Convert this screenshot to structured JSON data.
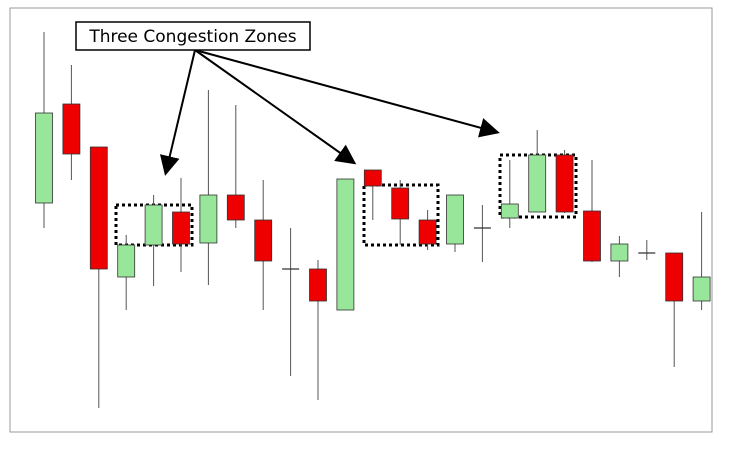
{
  "chart_data": {
    "type": "candlestick",
    "annotation": "Three Congestion Zones",
    "ylim": [
      0,
      420
    ],
    "up_color": "#98e69a",
    "down_color": "#ee0000",
    "open": [
      227,
      326,
      283,
      153,
      185,
      218,
      187,
      235,
      210,
      161,
      161,
      120,
      260,
      242,
      210,
      186,
      202,
      212,
      218,
      275,
      219,
      169,
      177,
      177,
      129
    ],
    "close": [
      317,
      276,
      161,
      185,
      225,
      186,
      235,
      210,
      169,
      161,
      129,
      251,
      244,
      211,
      186,
      235,
      202,
      226,
      275,
      218,
      169,
      186,
      177,
      129,
      153
    ],
    "high": [
      398,
      365,
      283,
      195,
      235,
      252,
      340,
      325,
      250,
      202,
      170,
      251,
      260,
      250,
      220,
      235,
      225,
      270,
      300,
      280,
      270,
      194,
      190,
      177,
      218
    ],
    "low": [
      202,
      250,
      22,
      120,
      144,
      158,
      145,
      202,
      120,
      54,
      30,
      120,
      210,
      185,
      180,
      178,
      168,
      202,
      218,
      217,
      168,
      153,
      170,
      63,
      120
    ]
  }
}
